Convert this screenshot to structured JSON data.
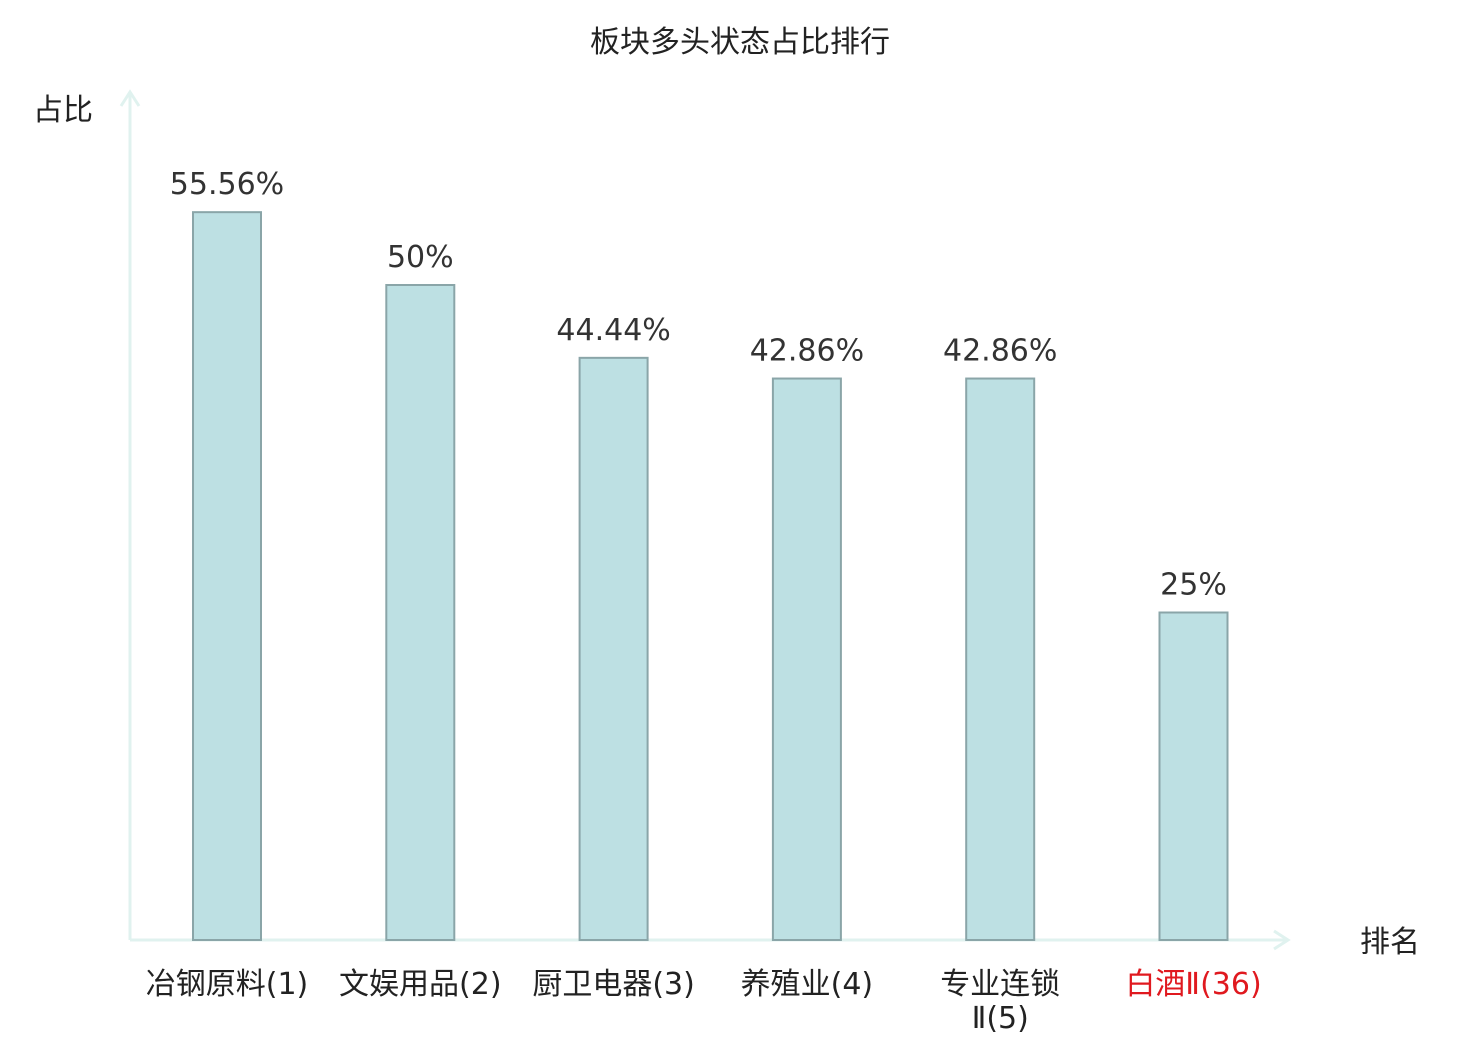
{
  "chart_data": {
    "type": "bar",
    "title": "板块多头状态占比排行",
    "ylabel": "占比",
    "xlabel": "排名",
    "categories": [
      {
        "name": "冶钢原料",
        "rank": "(1)",
        "label_lines": [
          "冶钢原料(1)"
        ],
        "highlight": false
      },
      {
        "name": "文娱用品",
        "rank": "(2)",
        "label_lines": [
          "文娱用品(2)"
        ],
        "highlight": false
      },
      {
        "name": "厨卫电器",
        "rank": "(3)",
        "label_lines": [
          "厨卫电器(3)"
        ],
        "highlight": false
      },
      {
        "name": "养殖业",
        "rank": "(4)",
        "label_lines": [
          "养殖业(4)"
        ],
        "highlight": false
      },
      {
        "name": "专业连锁Ⅱ",
        "rank": "(5)",
        "label_lines": [
          "专业连锁",
          "Ⅱ(5)"
        ],
        "highlight": false
      },
      {
        "name": "白酒Ⅱ",
        "rank": "(36)",
        "label_lines": [
          "白酒Ⅱ(36)"
        ],
        "highlight": true
      }
    ],
    "values": [
      55.56,
      50,
      44.44,
      42.86,
      42.86,
      25
    ],
    "value_labels": [
      "55.56%",
      "50%",
      "44.44%",
      "42.86%",
      "42.86%",
      "25%"
    ],
    "ylim": [
      0,
      60
    ],
    "grid": false,
    "colors": {
      "bar_fill": "#bde0e3",
      "bar_stroke": "#8aa5a8",
      "axis": "#e0f2ef",
      "highlight_text": "#e0191f",
      "text": "#222222"
    }
  }
}
